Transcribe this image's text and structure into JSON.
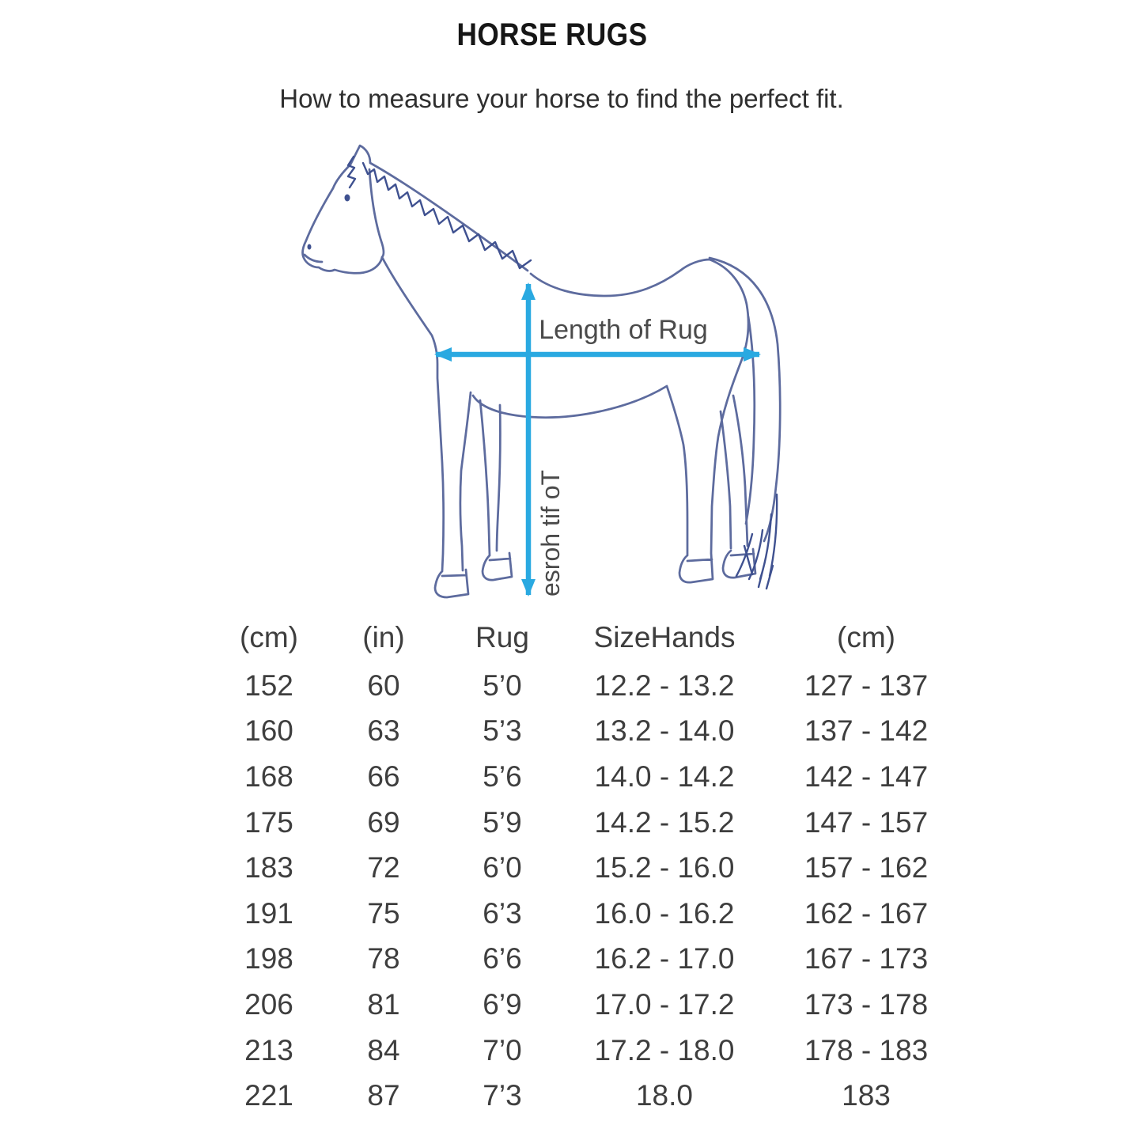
{
  "page": {
    "title": "HORSE RUGS",
    "subtitle": "How to measure your horse to find the perfect fit."
  },
  "diagram": {
    "length_of_rug_label": "Length of Rug",
    "to_fit_horse_label": "To fit horse",
    "arrow_color": "#29a9e1",
    "horse_outline_color": "#5d6b9e",
    "mane_color": "#3f5190"
  },
  "size_table": {
    "headers": [
      "(cm)",
      "(in)",
      "Rug",
      "SizeHands",
      "(cm)"
    ],
    "rows": [
      [
        "152",
        "60",
        "5’0",
        "12.2 - 13.2",
        "127 - 137"
      ],
      [
        "160",
        "63",
        "5’3",
        "13.2 - 14.0",
        "137 - 142"
      ],
      [
        "168",
        "66",
        "5’6",
        "14.0 - 14.2",
        "142 - 147"
      ],
      [
        "175",
        "69",
        "5’9",
        "14.2 - 15.2",
        "147 - 157"
      ],
      [
        "183",
        "72",
        "6’0",
        "15.2 - 16.0",
        "157 - 162"
      ],
      [
        "191",
        "75",
        "6’3",
        "16.0 - 16.2",
        "162 - 167"
      ],
      [
        "198",
        "78",
        "6’6",
        "16.2 - 17.0",
        "167 - 173"
      ],
      [
        "206",
        "81",
        "6’9",
        "17.0 - 17.2",
        "173 - 178"
      ],
      [
        "213",
        "84",
        "7’0",
        "17.2 - 18.0",
        "178 - 183"
      ],
      [
        "221",
        "87",
        "7’3",
        "18.0",
        "183"
      ]
    ]
  }
}
